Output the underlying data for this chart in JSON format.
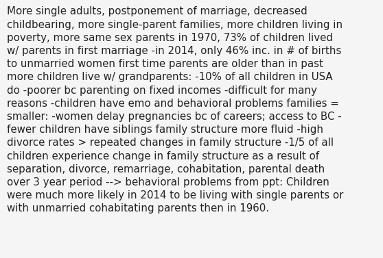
{
  "text": "More single adults, postponement of marriage, decreased childbearing, more single-parent families, more children living in poverty, more same sex parents in 1970, 73% of children lived w/ parents in first marriage -in 2014, only 46% inc. in # of births to unmarried women first time parents are older than in past more children live w/ grandparents: -10% of all children in USA do -poorer bc parenting on fixed incomes -difficult for many reasons -children have emo and behavioral problems families = smaller: -women delay pregnancies bc of careers; access to BC -fewer children have siblings family structure more fluid -high divorce rates > repeated changes in family structure -1/5 of all children experience change in family structure as a result of separation, divorce, remarriage, cohabitation, parental death over 3 year period --> behavioral problems from ppt: Children were much more likely in 2014 to be living with single parents or with unmarried cohabitating parents then in 1960.",
  "lines": [
    "More single adults, postponement of marriage, decreased",
    "childbearing, more single-parent families, more children living in",
    "poverty, more same sex parents in 1970, 73% of children lived",
    "w/ parents in first marriage -in 2014, only 46% inc. in # of births",
    "to unmarried women first time parents are older than in past",
    "more children live w/ grandparents: -10% of all children in USA",
    "do -poorer bc parenting on fixed incomes -difficult for many",
    "reasons -children have emo and behavioral problems families =",
    "smaller: -women delay pregnancies bc of careers; access to BC -",
    "fewer children have siblings family structure more fluid -high",
    "divorce rates > repeated changes in family structure -1/5 of all",
    "children experience change in family structure as a result of",
    "separation, divorce, remarriage, cohabitation, parental death",
    "over 3 year period --> behavioral problems from ppt: Children",
    "were much more likely in 2014 to be living with single parents or",
    "with unmarried cohabitating parents then in 1960."
  ],
  "background_color": "#f5f5f5",
  "text_color": "#222222",
  "font_size": 10.8,
  "font_family": "DejaVu Sans"
}
